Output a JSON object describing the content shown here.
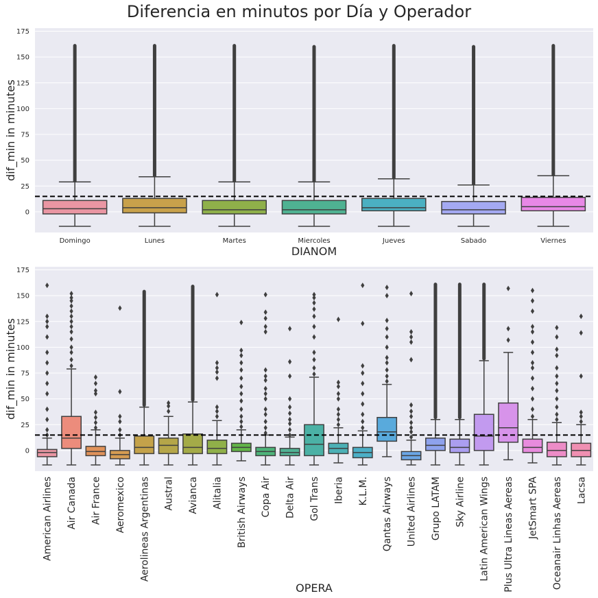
{
  "title": "Diferencia en minutos por Día y Operador",
  "threshold": 15,
  "colors": {
    "panel_bg": "#eaeaf2",
    "grid": "#ffffff",
    "edge": "#3f3f3f",
    "threshold_line": "#000000"
  },
  "chart_data": [
    {
      "type": "box",
      "xlabel": "DIANOM",
      "ylabel": "dif_min in minutes",
      "ylim": [
        -20,
        178
      ],
      "yticks": [
        0,
        25,
        50,
        75,
        100,
        125,
        150,
        175
      ],
      "grid": true,
      "categories": [
        "Domingo",
        "Lunes",
        "Martes",
        "Miercoles",
        "Jueves",
        "Sabado",
        "Viernes"
      ],
      "colors": [
        "#ea96a3",
        "#c8a14b",
        "#8fb04a",
        "#4fb292",
        "#4bb0c2",
        "#a4a9f2",
        "#e888e6"
      ],
      "boxes": [
        {
          "whislo": -14,
          "q1": -2,
          "med": 3,
          "q3": 11,
          "whishi": 29,
          "flier_min": 30,
          "flier_max": 161
        },
        {
          "whislo": -14,
          "q1": -1,
          "med": 4,
          "q3": 13,
          "whishi": 34,
          "flier_min": 35,
          "flier_max": 161
        },
        {
          "whislo": -14,
          "q1": -2,
          "med": 2,
          "q3": 11,
          "whishi": 29,
          "flier_min": 30,
          "flier_max": 161
        },
        {
          "whislo": -14,
          "q1": -2,
          "med": 2,
          "q3": 11,
          "whishi": 29,
          "flier_min": 30,
          "flier_max": 160
        },
        {
          "whislo": -14,
          "q1": 1,
          "med": 4,
          "q3": 13,
          "whishi": 32,
          "flier_min": 33,
          "flier_max": 161
        },
        {
          "whislo": -14,
          "q1": -2,
          "med": 2,
          "q3": 10,
          "whishi": 26,
          "flier_min": 27,
          "flier_max": 160
        },
        {
          "whislo": -14,
          "q1": 1,
          "med": 5,
          "q3": 14,
          "whishi": 35,
          "flier_min": 36,
          "flier_max": 161
        }
      ]
    },
    {
      "type": "box",
      "xlabel": "OPERA",
      "ylabel": "dif_min in minutes",
      "ylim": [
        -20,
        178
      ],
      "yticks": [
        0,
        25,
        50,
        75,
        100,
        125,
        150,
        175
      ],
      "grid": true,
      "categories": [
        "American Airlines",
        "Air Canada",
        "Air France",
        "Aeromexico",
        "Aerolineas Argentinas",
        "Austral",
        "Avianca",
        "Alitalia",
        "British Airways",
        "Copa Air",
        "Delta Air",
        "Gol Trans",
        "Iberia",
        "K.L.M.",
        "Qantas Airways",
        "United Airlines",
        "Grupo LATAM",
        "Sky Airline",
        "Latin American Wings",
        "Plus Ultra Lineas Aereas",
        "JetSmart SPA",
        "Oceanair Linhas Aereas",
        "Lacsa"
      ],
      "colors": [
        "#ea96a3",
        "#ec8c7c",
        "#e0925a",
        "#d59c52",
        "#c4a24a",
        "#b5a649",
        "#a4ab48",
        "#90b049",
        "#62b548",
        "#4eb47a",
        "#50b294",
        "#4bb1a5",
        "#4cb0b5",
        "#4cafc6",
        "#59aadc",
        "#6ba6e5",
        "#8ea2ed",
        "#ab9ef0",
        "#c29aef",
        "#d793ea",
        "#e78bdd",
        "#ed8cc7",
        "#ef8fb2"
      ],
      "boxes": [
        {
          "whislo": -14,
          "q1": -6,
          "med": -2,
          "q3": 1,
          "whishi": 12,
          "fliers": [
            15,
            20,
            30,
            40,
            55,
            65,
            75,
            85,
            95,
            110,
            120,
            125,
            130,
            160
          ]
        },
        {
          "whislo": -14,
          "q1": 2,
          "med": 12,
          "q3": 33,
          "whishi": 79,
          "fliers": [
            82,
            88,
            95,
            100,
            108,
            115,
            120,
            125,
            130,
            135,
            140,
            145,
            148,
            152
          ]
        },
        {
          "whislo": -14,
          "q1": -5,
          "med": -1,
          "q3": 4,
          "whishi": 20,
          "fliers": [
            22,
            27,
            32,
            37,
            55,
            58,
            65,
            71
          ]
        },
        {
          "whislo": -14,
          "q1": -8,
          "med": -4,
          "q3": 0,
          "whishi": 12,
          "fliers": [
            15,
            20,
            28,
            33,
            57,
            138
          ]
        },
        {
          "whislo": -14,
          "q1": -3,
          "med": 3,
          "q3": 14,
          "whishi": 42,
          "flier_min": 44,
          "flier_max": 154
        },
        {
          "whislo": -14,
          "q1": -3,
          "med": 5,
          "q3": 12,
          "whishi": 33,
          "fliers": [
            38,
            43,
            46
          ]
        },
        {
          "whislo": -14,
          "q1": -3,
          "med": 3,
          "q3": 16,
          "whishi": 47,
          "flier_min": 49,
          "flier_max": 159
        },
        {
          "whislo": -14,
          "q1": -3,
          "med": 2,
          "q3": 10,
          "whishi": 29,
          "fliers": [
            33,
            38,
            42,
            70,
            76,
            80,
            85,
            151
          ]
        },
        {
          "whislo": -10,
          "q1": -1,
          "med": 3,
          "q3": 7,
          "whishi": 20,
          "fliers": [
            23,
            28,
            33,
            40,
            48,
            55,
            62,
            70,
            78,
            85,
            92,
            97,
            124
          ]
        },
        {
          "whislo": -14,
          "q1": -5,
          "med": -1,
          "q3": 3,
          "whishi": 15,
          "fliers": [
            17,
            22,
            28,
            35,
            40,
            50,
            55,
            60,
            68,
            72,
            78,
            115,
            120,
            128,
            134,
            151
          ]
        },
        {
          "whislo": -14,
          "q1": -5,
          "med": -2,
          "q3": 2,
          "whishi": 13,
          "fliers": [
            15,
            20,
            26,
            30,
            36,
            42,
            50,
            72,
            86,
            118
          ]
        },
        {
          "whislo": -14,
          "q1": -5,
          "med": 6,
          "q3": 25,
          "whishi": 71,
          "fliers": [
            74,
            80,
            88,
            95,
            110,
            120,
            130,
            137,
            143,
            148,
            151
          ]
        },
        {
          "whislo": -12,
          "q1": -3,
          "med": 2,
          "q3": 7,
          "whishi": 22,
          "fliers": [
            25,
            30,
            35,
            40,
            50,
            55,
            62,
            66,
            127
          ]
        },
        {
          "whislo": -14,
          "q1": -7,
          "med": -2,
          "q3": 3,
          "whishi": 19,
          "fliers": [
            22,
            28,
            35,
            45,
            55,
            65,
            75,
            82,
            123,
            160
          ]
        },
        {
          "whislo": -6,
          "q1": 9,
          "med": 18,
          "q3": 32,
          "whishi": 64,
          "fliers": [
            67,
            72,
            78,
            85,
            90,
            100,
            110,
            118,
            126,
            150,
            158
          ]
        },
        {
          "whislo": -14,
          "q1": -9,
          "med": -5,
          "q3": -1,
          "whishi": 10,
          "fliers": [
            13,
            18,
            22,
            27,
            33,
            38,
            44,
            88,
            105,
            110,
            115,
            152
          ]
        },
        {
          "whislo": -14,
          "q1": 0,
          "med": 5,
          "q3": 12,
          "whishi": 30,
          "flier_min": 32,
          "flier_max": 161
        },
        {
          "whislo": -14,
          "q1": -2,
          "med": 3,
          "q3": 11,
          "whishi": 30,
          "flier_min": 32,
          "flier_max": 161
        },
        {
          "whislo": -14,
          "q1": 0,
          "med": 14,
          "q3": 35,
          "whishi": 87,
          "flier_min": 89,
          "flier_max": 161
        },
        {
          "whislo": -9,
          "q1": 8,
          "med": 22,
          "q3": 46,
          "whishi": 95,
          "fliers": [
            107,
            118,
            157
          ]
        },
        {
          "whislo": -12,
          "q1": -2,
          "med": 3,
          "q3": 11,
          "whishi": 30,
          "fliers": [
            33,
            40,
            50,
            60,
            70,
            80,
            85,
            95,
            105,
            115,
            120,
            135,
            145,
            155
          ]
        },
        {
          "whislo": -14,
          "q1": -6,
          "med": 0,
          "q3": 8,
          "whishi": 27,
          "fliers": [
            30,
            35,
            42,
            50,
            58,
            65,
            72,
            80,
            92,
            98,
            110,
            119
          ]
        },
        {
          "whislo": -14,
          "q1": -6,
          "med": 0,
          "q3": 7,
          "whishi": 25,
          "fliers": [
            28,
            33,
            37,
            72,
            114,
            130
          ]
        }
      ]
    }
  ]
}
